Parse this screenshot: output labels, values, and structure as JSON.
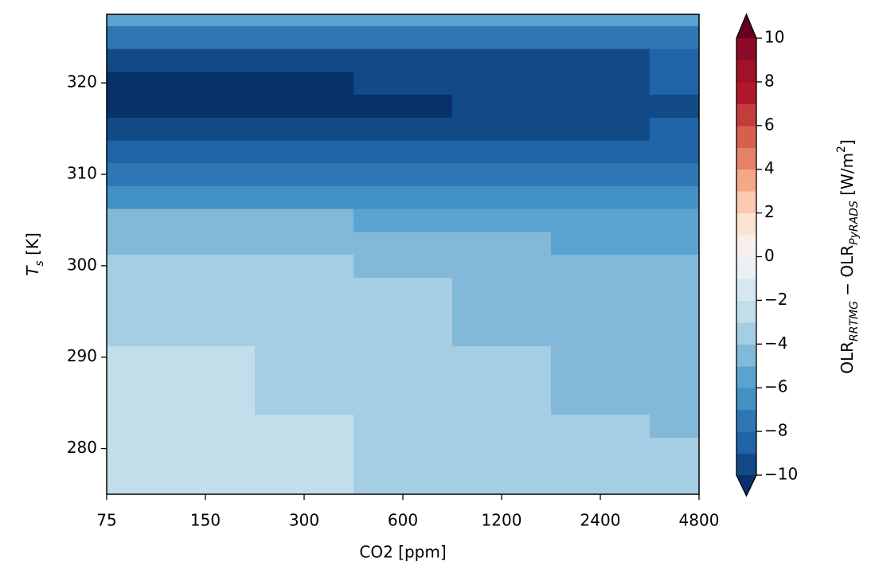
{
  "chart_data": {
    "type": "contour",
    "xlabel": "CO2 [ppm]",
    "ylabel": [
      "T",
      "s",
      " [K]"
    ],
    "log_x": true,
    "x": [
      75,
      150,
      300,
      600,
      1200,
      2400,
      4800
    ],
    "y": [
      275,
      277.5,
      280,
      282.5,
      285,
      287.5,
      290,
      292.5,
      295,
      297.5,
      300,
      302.5,
      305,
      307.5,
      310,
      312.5,
      315,
      317.5,
      320,
      322.5,
      325,
      327.5
    ],
    "z": [
      [
        -2.5,
        -2.5,
        -2.5,
        -3.5,
        -3.5,
        -3.5,
        -3.5
      ],
      [
        -2.5,
        -2.5,
        -2.5,
        -3.5,
        -3.5,
        -3.5,
        -3.5
      ],
      [
        -2.5,
        -2.5,
        -2.5,
        -3.5,
        -3.5,
        -3.5,
        -3.5
      ],
      [
        -2.5,
        -2.5,
        -2.5,
        -3.5,
        -3.5,
        -3.5,
        -4.5
      ],
      [
        -2.5,
        -2.5,
        -3.5,
        -3.5,
        -3.5,
        -4.5,
        -4.5
      ],
      [
        -2.5,
        -2.5,
        -3.5,
        -3.5,
        -3.5,
        -4.5,
        -4.5
      ],
      [
        -2.5,
        -2.5,
        -3.5,
        -3.5,
        -3.5,
        -4.5,
        -4.5
      ],
      [
        -3.5,
        -3.5,
        -3.5,
        -3.5,
        -4.5,
        -4.5,
        -4.5
      ],
      [
        -3.5,
        -3.5,
        -3.5,
        -3.5,
        -4.5,
        -4.5,
        -4.5
      ],
      [
        -3.5,
        -3.5,
        -3.5,
        -3.5,
        -4.5,
        -4.5,
        -4.5
      ],
      [
        -3.5,
        -3.5,
        -3.5,
        -4.5,
        -4.5,
        -4.5,
        -4.5
      ],
      [
        -4.5,
        -4.5,
        -4.5,
        -4.5,
        -4.5,
        -5.5,
        -5.5
      ],
      [
        -4.5,
        -4.5,
        -4.5,
        -5.5,
        -5.5,
        -5.5,
        -5.5
      ],
      [
        -6.5,
        -6.5,
        -6.5,
        -6.5,
        -6.5,
        -6.5,
        -6.5
      ],
      [
        -7.5,
        -7.5,
        -7.5,
        -7.5,
        -7.5,
        -7.5,
        -7.5
      ],
      [
        -8.5,
        -8.5,
        -8.5,
        -8.5,
        -8.5,
        -8.5,
        -8.5
      ],
      [
        -9.5,
        -9.5,
        -9.5,
        -9.5,
        -9.5,
        -9.5,
        -8.5
      ],
      [
        -10.5,
        -10.5,
        -10.5,
        -10.5,
        -9.5,
        -9.5,
        -9.5
      ],
      [
        -10.5,
        -10.5,
        -10.5,
        -9.5,
        -9.5,
        -9.5,
        -8.5
      ],
      [
        -9.5,
        -9.5,
        -9.5,
        -9.5,
        -9.5,
        -9.5,
        -8.5
      ],
      [
        -7.5,
        -7.5,
        -7.5,
        -7.5,
        -7.5,
        -7.5,
        -7.5
      ],
      [
        -5.5,
        -5.5,
        -5.5,
        -5.5,
        -5.5,
        -5.5,
        -5.5
      ]
    ],
    "xlim": [
      75,
      4800
    ],
    "xticks": [
      75,
      150,
      300,
      600,
      1200,
      2400,
      4800
    ],
    "ylim": [
      275,
      327.5
    ],
    "yticks": [
      280,
      290,
      300,
      310,
      320
    ],
    "colorbar": {
      "label": [
        "OLR",
        "RRTMG",
        " − OLR",
        "PyRADS",
        " [W/m",
        "2",
        "]"
      ],
      "levels": [
        -10,
        -9,
        -8,
        -7,
        -6,
        -5,
        -4,
        -3,
        -2,
        -1,
        0,
        1,
        2,
        3,
        4,
        5,
        6,
        7,
        8,
        9,
        10
      ],
      "colors": [
        "#124a88",
        "#2064a8",
        "#2f77b4",
        "#4291c4",
        "#5aa2cf",
        "#82b9d8",
        "#a5cde3",
        "#c2deeb",
        "#d6e7f1",
        "#eaf1f5",
        "#f7f0ec",
        "#fbe3d4",
        "#f9c9b0",
        "#f4a886",
        "#e58268",
        "#d6604d",
        "#c43c3c",
        "#b2182b",
        "#a11228",
        "#8a0b25"
      ],
      "extend_min_color": "#08306b",
      "extend_max_color": "#67001f",
      "ticks": [
        {
          "value": -10,
          "label": "−10"
        },
        {
          "value": -8,
          "label": "−8"
        },
        {
          "value": -6,
          "label": "−6"
        },
        {
          "value": -4,
          "label": "−4"
        },
        {
          "value": -2,
          "label": "−2"
        },
        0,
        2,
        4,
        6,
        8,
        10
      ]
    }
  }
}
